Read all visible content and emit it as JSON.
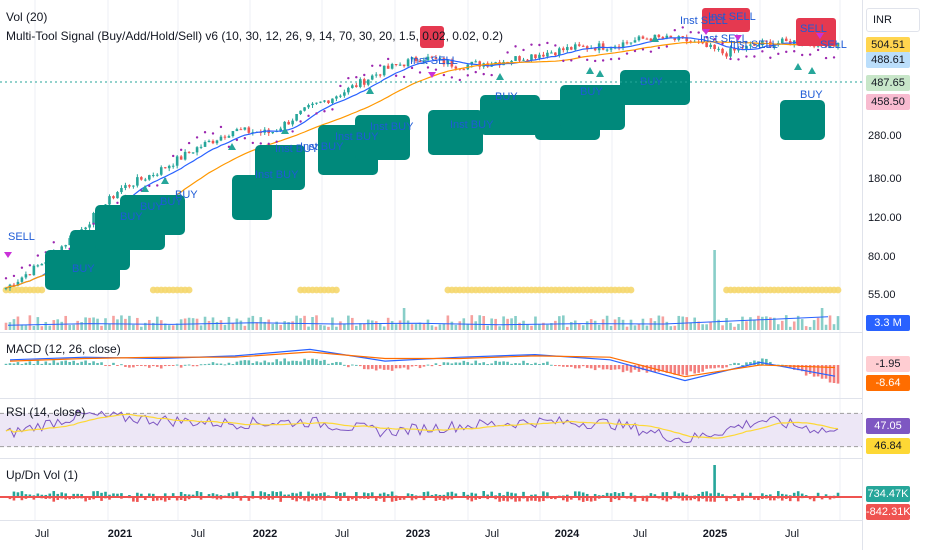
{
  "currency": "INR",
  "legends": {
    "volume": "Vol (20)",
    "signal": "Multi-Tool Signal (Buy/Add/Hold/Sell) v6 (10, 30, 12, 26, 9, 14, 70, 30, 20, 1.5, 0.02, 0.02, 0.2)",
    "macd": "MACD (12, 26, close)",
    "rsi": "RSI (14, close)",
    "updn": "Up/Dn Vol (1)"
  },
  "price_labels": [
    "280.00",
    "180.00",
    "120.00",
    "80.00",
    "55.00"
  ],
  "price_tags": [
    {
      "text": "504.51",
      "bg": "#ffd54f",
      "fg": "#131722"
    },
    {
      "text": "488.61",
      "bg": "#bbdefb",
      "fg": "#131722"
    },
    {
      "text": "487.65",
      "bg": "#c8e6c9",
      "fg": "#131722"
    },
    {
      "text": "458.50",
      "bg": "#f8bbd0",
      "fg": "#131722"
    },
    {
      "text": "3.3 M",
      "bg": "#2962ff",
      "fg": "#ffffff"
    },
    {
      "text": "-1.95",
      "bg": "#ffcdd2",
      "fg": "#131722"
    },
    {
      "text": "-8.64",
      "bg": "#ff6d00",
      "fg": "#ffffff"
    },
    {
      "text": "47.05",
      "bg": "#7e57c2",
      "fg": "#ffffff"
    },
    {
      "text": "46.84",
      "bg": "#fdd835",
      "fg": "#131722"
    },
    {
      "text": "734.47K",
      "bg": "#26a69a",
      "fg": "#ffffff"
    },
    {
      "text": "-842.31K",
      "bg": "#ef5350",
      "fg": "#ffffff"
    }
  ],
  "signal_labels": [
    "SELL",
    "Inst SELL",
    "Inst SELL",
    "Inst SELL",
    "Inst SELL",
    "Inst SELL",
    "SELL",
    "SELL",
    "BUY",
    "BUY",
    "BUY",
    "BUY",
    "BUY",
    "Inst BUY",
    "Inst BUY",
    "Inst BUY",
    "Inst BUY",
    "Inst BUY",
    "Inst BUY"
  ],
  "time_axis": [
    {
      "label": "Jul",
      "year": false
    },
    {
      "label": "2021",
      "year": true
    },
    {
      "label": "Jul",
      "year": false
    },
    {
      "label": "2022",
      "year": true
    },
    {
      "label": "Jul",
      "year": false
    },
    {
      "label": "2023",
      "year": true
    },
    {
      "label": "Jul",
      "year": false
    },
    {
      "label": "2024",
      "year": true
    },
    {
      "label": "Jul",
      "year": false
    },
    {
      "label": "2025",
      "year": true
    },
    {
      "label": "Jul",
      "year": false
    }
  ],
  "colors": {
    "up": "#26a69a",
    "down": "#ef5350",
    "ma_fast": "#2962ff",
    "ma_slow": "#ff9800",
    "sar": "#9c27b0",
    "buy_box": "#00897b",
    "buy_text": "#1e5bd6",
    "sell_box": "#e53950",
    "squeeze": "#f5d76e",
    "macd_line": "#2962ff",
    "signal_line": "#ff6d00",
    "rsi_line": "#7e57c2",
    "rsi_ma": "#fdd835",
    "rsi_band": "#ede7f6"
  },
  "chart_data": [
    {
      "type": "line",
      "title": "",
      "ylabel": "INR",
      "x": [
        "2020-05",
        "2020-07",
        "2020-10",
        "2021-01",
        "2021-04",
        "2021-07",
        "2021-10",
        "2022-01",
        "2022-04",
        "2022-07",
        "2022-10",
        "2023-01",
        "2023-04",
        "2023-07",
        "2023-10",
        "2024-01",
        "2024-04",
        "2024-07",
        "2024-10",
        "2025-01",
        "2025-04",
        "2025-07",
        "2025-09"
      ],
      "series": [
        {
          "values": [
            45,
            58,
            80,
            118,
            140,
            175,
            210,
            205,
            260,
            310,
            380,
            430,
            395,
            410,
            440,
            470,
            480,
            520,
            505,
            445,
            490,
            500,
            487
          ]
        }
      ],
      "ylim": [
        40,
        560
      ],
      "scale": "log"
    },
    {
      "type": "bar",
      "title": "",
      "x": [
        "2020-07",
        "2021-01",
        "2021-07",
        "2022-01",
        "2022-07",
        "2023-01",
        "2023-07",
        "2024-01",
        "2024-07",
        "2025-01",
        "2025-07"
      ],
      "series": [
        {
          "values": [
            1.2,
            1.6,
            1.4,
            1.8,
            1.5,
            1.7,
            1.3,
            1.6,
            1.5,
            2.4,
            3.3
          ]
        }
      ]
    },
    {
      "type": "line",
      "title": "",
      "x": [
        "2020-07",
        "2021-01",
        "2021-07",
        "2022-01",
        "2022-07",
        "2023-01",
        "2023-07",
        "2024-01",
        "2024-07",
        "2025-01",
        "2025-07",
        "2025-09"
      ],
      "series": [
        {
          "name": "MACD",
          "values": [
            4,
            6,
            5,
            7,
            12,
            3,
            6,
            8,
            4,
            -12,
            2,
            -8.64
          ]
        },
        {
          "name": "Signal",
          "values": [
            3,
            5,
            6,
            6,
            10,
            5,
            5,
            7,
            6,
            -9,
            0,
            -1.95
          ]
        }
      ]
    },
    {
      "type": "line",
      "title": "",
      "x": [
        "2020-07",
        "2021-01",
        "2021-07",
        "2022-01",
        "2022-07",
        "2023-01",
        "2023-07",
        "2024-01",
        "2024-07",
        "2025-01",
        "2025-07",
        "2025-09"
      ],
      "series": [
        {
          "name": "RSI",
          "values": [
            45,
            68,
            62,
            58,
            60,
            48,
            55,
            60,
            58,
            38,
            62,
            47.05
          ]
        },
        {
          "name": "RSI MA",
          "values": [
            44,
            60,
            62,
            57,
            58,
            52,
            53,
            58,
            57,
            44,
            55,
            46.84
          ]
        }
      ],
      "ylim": [
        20,
        80
      ]
    },
    {
      "type": "bar",
      "title": "",
      "x": [
        "2020-07",
        "2021-01",
        "2021-07",
        "2022-01",
        "2022-07",
        "2023-01",
        "2023-07",
        "2024-01",
        "2024-07",
        "2025-01",
        "2025-07",
        "2025-09"
      ],
      "series": [
        {
          "name": "Up",
          "values": [
            0.2,
            0.4,
            0.3,
            0.3,
            0.4,
            0.2,
            0.3,
            0.5,
            0.3,
            2.0,
            0.6,
            0.73447
          ]
        },
        {
          "name": "Down",
          "values": [
            -0.3,
            -0.3,
            -0.2,
            -0.4,
            -0.3,
            -0.3,
            -0.2,
            -0.3,
            -0.3,
            -0.5,
            -0.4,
            -0.84231
          ]
        }
      ]
    }
  ]
}
